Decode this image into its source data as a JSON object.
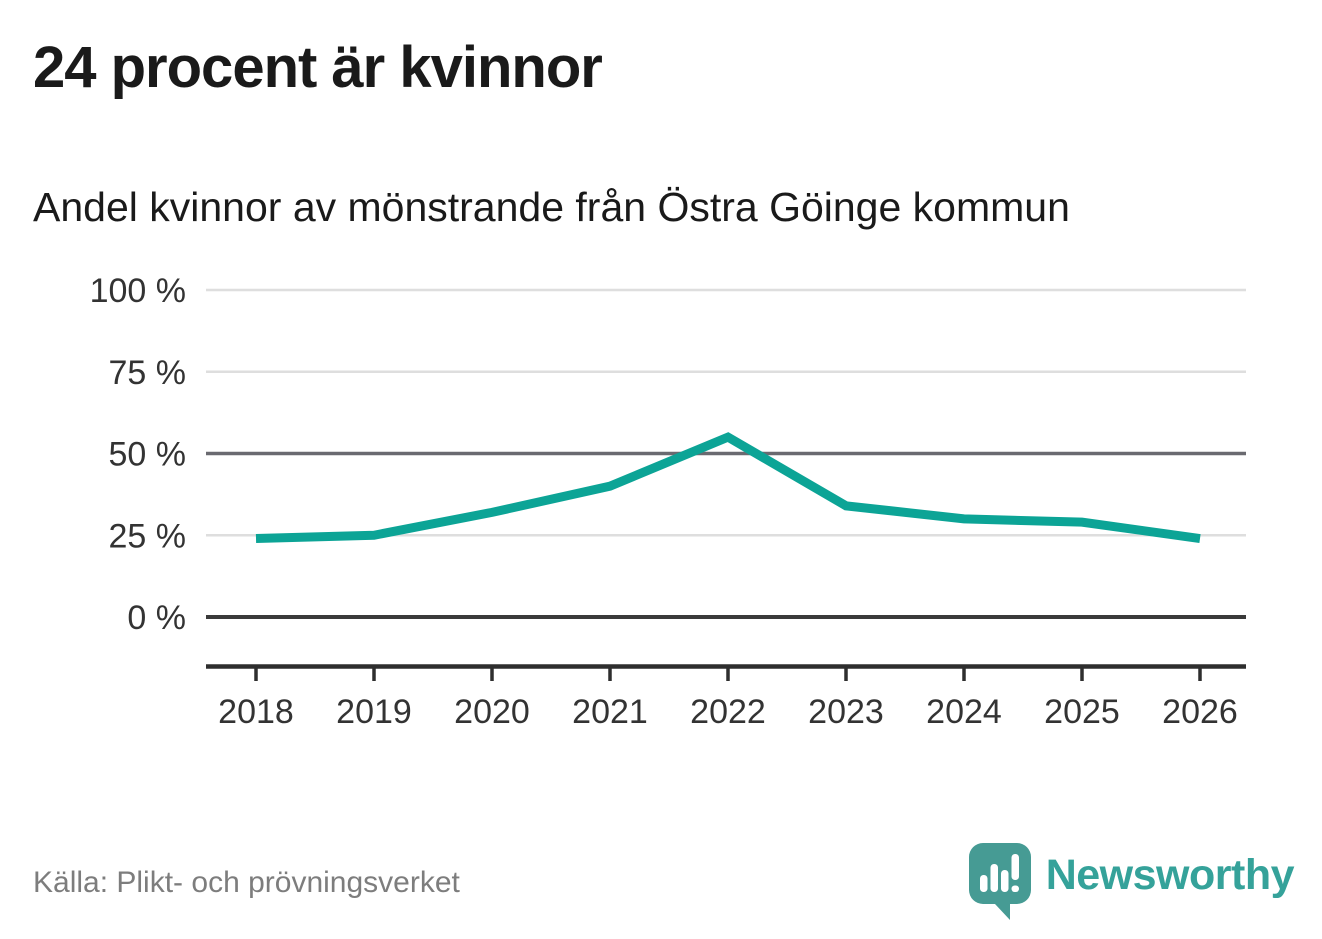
{
  "header": {
    "title": "24 procent är kvinnor",
    "subtitle": "Andel kvinnor av mönstrande från Östra Göinge kommun"
  },
  "footer": {
    "source": "Källa: Plikt- och prövningsverket",
    "brand": "Newsworthy"
  },
  "icons": {
    "brand_icon": "newsworthy-speech-bubble-bar-chart-icon"
  },
  "colors": {
    "line": "#0ca496",
    "grid_light": "#dedede",
    "grid_mid": "#6a6a70",
    "grid_zero": "#3a3a3a",
    "axis": "#2e2e2e",
    "tick_label": "#333333",
    "brand_teal": "#35a29a",
    "brand_bubble": "#469b94"
  },
  "chart_data": {
    "type": "line",
    "title": "24 procent är kvinnor",
    "subtitle": "Andel kvinnor av mönstrande från Östra Göinge kommun",
    "x": [
      "2018",
      "2019",
      "2020",
      "2021",
      "2022",
      "2023",
      "2024",
      "2025",
      "2026"
    ],
    "series": [
      {
        "name": "Andel kvinnor av mönstrande",
        "values": [
          24,
          25,
          32,
          40,
          55,
          34,
          30,
          29,
          24
        ]
      }
    ],
    "unit": "%",
    "ylim": [
      0,
      100
    ],
    "yticks": [
      {
        "value": 100,
        "label": "100 %"
      },
      {
        "value": 75,
        "label": "75 %"
      },
      {
        "value": 50,
        "label": "50 %"
      },
      {
        "value": 25,
        "label": "25 %"
      },
      {
        "value": 0,
        "label": "0 %"
      }
    ],
    "grid": "horizontal",
    "legend": "none"
  }
}
